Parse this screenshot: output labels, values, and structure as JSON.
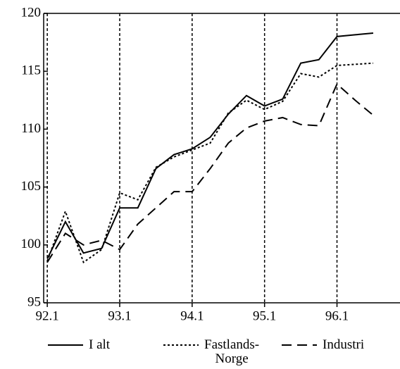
{
  "chart_data": {
    "type": "line",
    "x": [
      92.0,
      92.25,
      92.5,
      92.75,
      93.0,
      93.25,
      93.5,
      93.75,
      94.0,
      94.25,
      94.5,
      94.75,
      95.0,
      95.25,
      95.5,
      95.75,
      96.0,
      96.25,
      96.5
    ],
    "series": [
      {
        "name": "I alt",
        "color": "#000000",
        "dash": "solid",
        "values": [
          98.8,
          102.0,
          99.3,
          99.7,
          103.2,
          103.2,
          106.6,
          107.8,
          108.3,
          109.3,
          111.3,
          112.9,
          112.0,
          112.6,
          115.7,
          116.0,
          118.0,
          118.15,
          118.3
        ]
      },
      {
        "name": "Fastlands-\nNorge",
        "color": "#000000",
        "dash": "dotted",
        "values": [
          98.6,
          102.9,
          98.5,
          99.6,
          104.5,
          103.9,
          106.7,
          107.6,
          108.2,
          108.8,
          111.4,
          112.5,
          111.7,
          112.4,
          114.8,
          114.5,
          115.5,
          115.6,
          115.7
        ]
      },
      {
        "name": "Industri",
        "color": "#000000",
        "dash": "dashed",
        "values": [
          98.5,
          101.0,
          100.0,
          100.4,
          99.6,
          101.8,
          103.2,
          104.6,
          104.6,
          106.6,
          108.8,
          110.1,
          110.7,
          111.0,
          110.4,
          110.3,
          113.9,
          112.5,
          111.2
        ]
      }
    ],
    "xlim": [
      91.95,
      96.87
    ],
    "xticks": [
      {
        "value": 92,
        "label": "92.1"
      },
      {
        "value": 93,
        "label": "93.1"
      },
      {
        "value": 94,
        "label": "94.1"
      },
      {
        "value": 95,
        "label": "95.1"
      },
      {
        "value": 96,
        "label": "96.1"
      }
    ],
    "ylim": [
      95,
      120
    ],
    "yticks": [
      95,
      100,
      105,
      110,
      115,
      120
    ],
    "grid": "x"
  }
}
